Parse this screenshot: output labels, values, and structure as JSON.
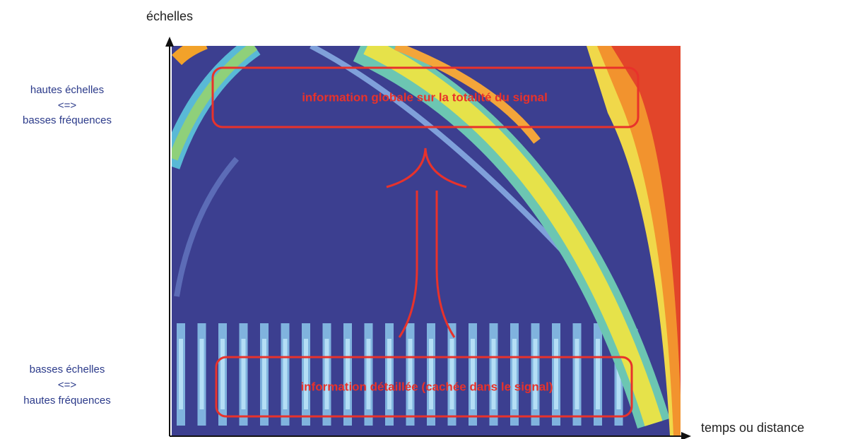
{
  "axes": {
    "y_label": "échelles",
    "x_label": "temps ou distance"
  },
  "side_labels": {
    "top": [
      "hautes échelles",
      "<=>",
      "basses fréquences"
    ],
    "bottom": [
      "basses échelles",
      "<=>",
      "hautes fréquences"
    ]
  },
  "annotations": {
    "top": "information globale sur la totalité du signal",
    "bottom": "information détaillée (cachée dans le signal)"
  }
}
